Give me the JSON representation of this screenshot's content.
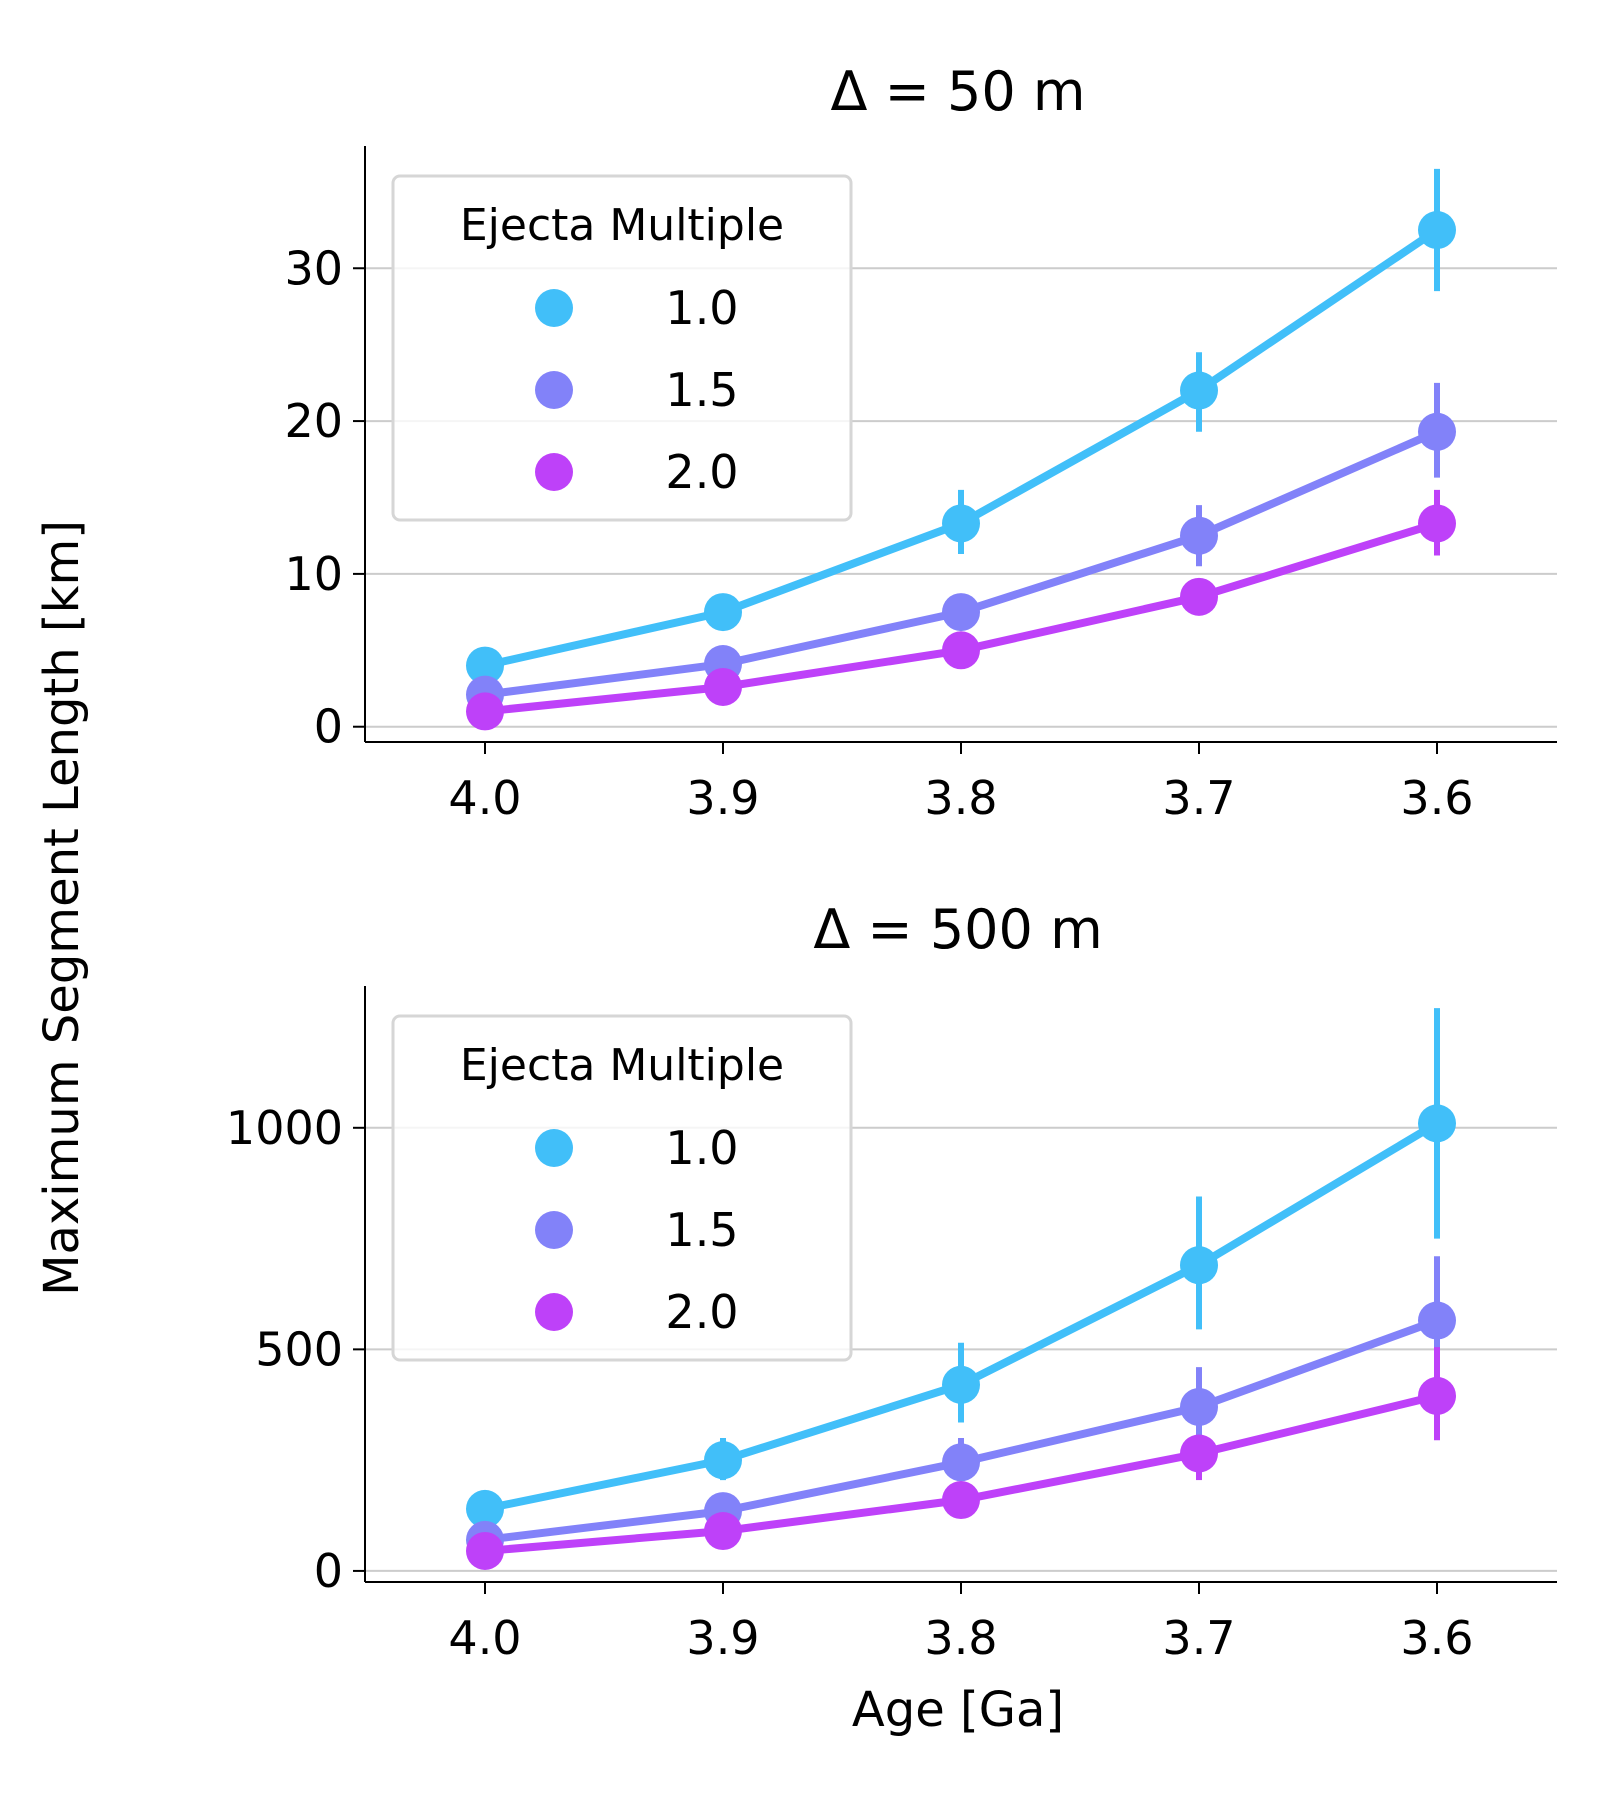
{
  "figure": {
    "ylabel": "Maximum Segment Length [km]",
    "xlabel": "Age [Ga]"
  },
  "chart_data": [
    {
      "type": "line",
      "title": "Δ = 50 m",
      "categories": [
        "4.0",
        "3.9",
        "3.8",
        "3.7",
        "3.6"
      ],
      "ylim": [
        -1,
        38
      ],
      "yticks": [
        0,
        10,
        20,
        30
      ],
      "ytick_labels": [
        "0",
        "10",
        "20",
        "30"
      ],
      "grid": "y",
      "legend": {
        "title": "Ejecta Multiple",
        "placement": "top-left"
      },
      "series": [
        {
          "name": "1.0",
          "color": "#41bff9",
          "values": [
            4.0,
            7.5,
            13.3,
            22.0,
            32.5
          ],
          "err_low": [
            4.0,
            7.5,
            11.3,
            19.3,
            28.5
          ],
          "err_high": [
            4.0,
            7.5,
            15.5,
            24.5,
            36.5
          ]
        },
        {
          "name": "1.5",
          "color": "#8282f9",
          "values": [
            2.1,
            4.1,
            7.5,
            12.5,
            19.3
          ],
          "err_low": [
            2.1,
            4.1,
            7.5,
            10.5,
            16.3
          ],
          "err_high": [
            2.1,
            4.1,
            7.5,
            14.5,
            22.5
          ]
        },
        {
          "name": "2.0",
          "color": "#be41f9",
          "values": [
            1.0,
            2.6,
            5.0,
            8.5,
            13.3
          ],
          "err_low": [
            1.0,
            2.6,
            5.0,
            8.5,
            11.2
          ],
          "err_high": [
            1.0,
            2.6,
            5.0,
            8.5,
            15.5
          ]
        }
      ]
    },
    {
      "type": "line",
      "title": "Δ = 500 m",
      "categories": [
        "4.0",
        "3.9",
        "3.8",
        "3.7",
        "3.6"
      ],
      "ylim": [
        -25,
        1320
      ],
      "yticks": [
        0,
        500,
        1000
      ],
      "ytick_labels": [
        "0",
        "500",
        "1000"
      ],
      "grid": "y",
      "legend": {
        "title": "Ejecta Multiple",
        "placement": "top-left"
      },
      "series": [
        {
          "name": "1.0",
          "color": "#41bff9",
          "values": [
            140,
            250,
            420,
            690,
            1010
          ],
          "err_low": [
            140,
            205,
            335,
            545,
            750
          ],
          "err_high": [
            140,
            300,
            515,
            845,
            1270
          ]
        },
        {
          "name": "1.5",
          "color": "#8282f9",
          "values": [
            70,
            135,
            245,
            370,
            565
          ],
          "err_low": [
            70,
            135,
            245,
            285,
            460
          ],
          "err_high": [
            70,
            135,
            300,
            460,
            710
          ]
        },
        {
          "name": "2.0",
          "color": "#be41f9",
          "values": [
            45,
            90,
            160,
            265,
            395
          ],
          "err_low": [
            45,
            90,
            160,
            205,
            295
          ],
          "err_high": [
            45,
            90,
            160,
            265,
            505
          ]
        }
      ]
    }
  ]
}
